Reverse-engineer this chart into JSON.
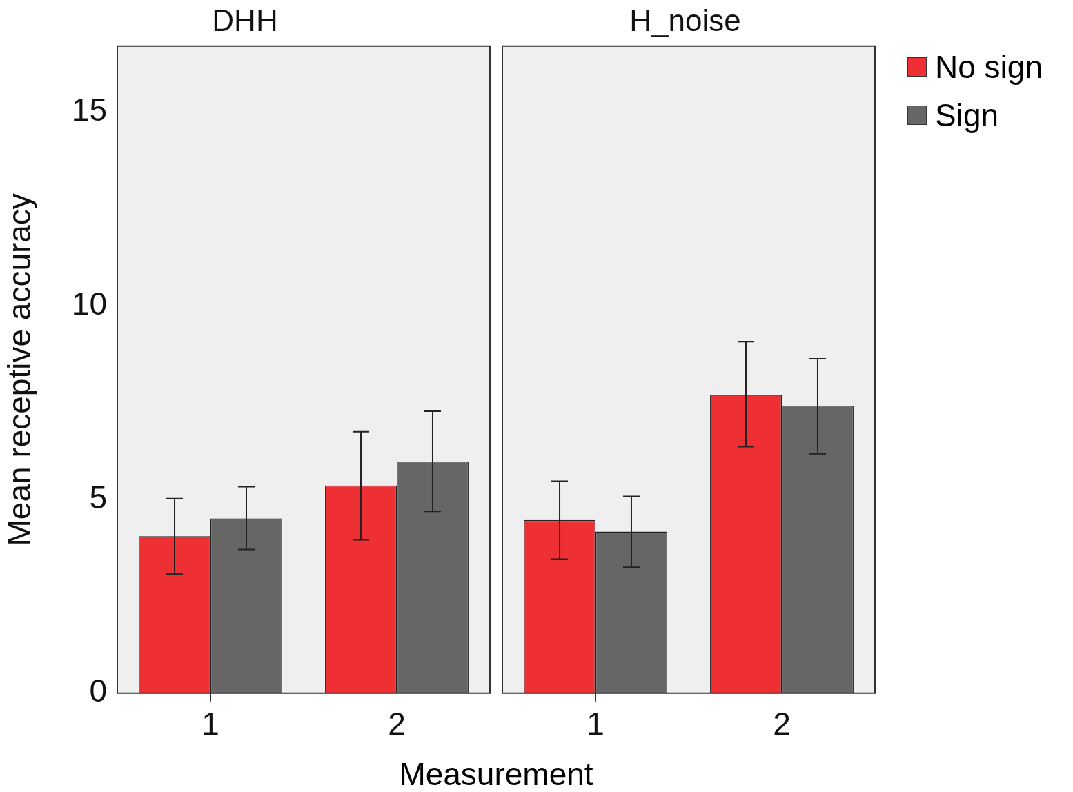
{
  "chart_data": [
    {
      "type": "bar",
      "title": "DHH",
      "xlabel": "Measurement",
      "ylabel": "Mean receptive accuracy",
      "categories": [
        "1",
        "2"
      ],
      "ylim": [
        0,
        16.7
      ],
      "yticks": [
        0,
        5,
        10,
        15
      ],
      "grid": false,
      "legend": "top right",
      "series": [
        {
          "name": "No sign",
          "color": "#ee3035",
          "values": [
            4.05,
            5.36
          ],
          "errors": [
            [
              3.07,
              5.02
            ],
            [
              3.96,
              6.75
            ]
          ]
        },
        {
          "name": "Sign",
          "color": "#666666",
          "values": [
            4.51,
            5.98
          ],
          "errors": [
            [
              3.71,
              5.33
            ],
            [
              4.69,
              7.28
            ]
          ]
        }
      ]
    },
    {
      "type": "bar",
      "title": "H_noise",
      "categories": [
        "1",
        "2"
      ],
      "ylim": [
        0,
        16.7
      ],
      "yticks": [
        0,
        5,
        10,
        15
      ],
      "grid": false,
      "tick_labels": "x",
      "series": [
        {
          "color": "#ee3035",
          "values": [
            4.47,
            7.7
          ],
          "errors": [
            [
              3.46,
              5.47
            ],
            [
              6.36,
              9.07
            ]
          ]
        },
        {
          "color": "#666666",
          "values": [
            4.17,
            7.42
          ],
          "errors": [
            [
              3.25,
              5.08
            ],
            [
              6.18,
              8.63
            ]
          ]
        }
      ]
    }
  ]
}
